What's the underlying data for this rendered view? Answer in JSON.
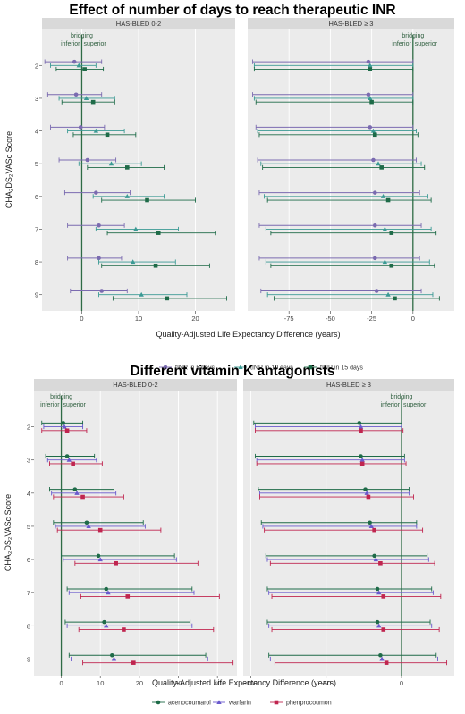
{
  "chart_data": [
    {
      "type": "forest",
      "title": "Effect of number of days to reach therapeutic INR",
      "xlabel": "Quality-Adjusted Life Expectancy Difference (years)",
      "ylabel": "CHA₂DS₂VASc Score",
      "categories": [
        "2",
        "3",
        "4",
        "5",
        "6",
        "7",
        "8",
        "9"
      ],
      "reference_line": {
        "x": 0,
        "label": "bridging",
        "left": "inferior",
        "right": "superior"
      },
      "legend": {
        "position": "bottom"
      },
      "series": [
        {
          "name": "tINR in 5 days",
          "color": "#7b6bb0",
          "marker": "circle"
        },
        {
          "name": "tINR in 10 days",
          "color": "#3a9a94",
          "marker": "triangle"
        },
        {
          "name": "tINR in 15 days",
          "color": "#1e6b48",
          "marker": "square"
        }
      ],
      "panels": [
        {
          "label": "HAS-BLED 0-2",
          "xlim": [
            -7,
            27
          ],
          "xticks": [
            0,
            10,
            20
          ],
          "data": [
            [
              {
                "est": -1.3,
                "lo": -6.5,
                "hi": 3.5
              },
              {
                "est": -0.5,
                "lo": -5.5,
                "hi": 2.5
              },
              {
                "est": 0.5,
                "lo": -4.5,
                "hi": 3.8
              }
            ],
            [
              {
                "est": -1.0,
                "lo": -6.0,
                "hi": 3.5
              },
              {
                "est": 0.8,
                "lo": -4.0,
                "hi": 5.8
              },
              {
                "est": 2.0,
                "lo": -3.5,
                "hi": 5.8
              }
            ],
            [
              {
                "est": -0.2,
                "lo": -5.5,
                "hi": 4.0
              },
              {
                "est": 2.5,
                "lo": -2.5,
                "hi": 7.5
              },
              {
                "est": 4.5,
                "lo": -1.5,
                "hi": 9.5
              }
            ],
            [
              {
                "est": 1.0,
                "lo": -4.0,
                "hi": 6.0
              },
              {
                "est": 5.2,
                "lo": -0.5,
                "hi": 10.5
              },
              {
                "est": 8.0,
                "lo": 1.0,
                "hi": 14.5
              }
            ],
            [
              {
                "est": 2.5,
                "lo": -3.0,
                "hi": 8.5
              },
              {
                "est": 8.0,
                "lo": 2.0,
                "hi": 14.5
              },
              {
                "est": 11.5,
                "lo": 3.5,
                "hi": 20.0
              }
            ],
            [
              {
                "est": 3.0,
                "lo": -2.5,
                "hi": 7.5
              },
              {
                "est": 9.5,
                "lo": 2.5,
                "hi": 17.0
              },
              {
                "est": 13.5,
                "lo": 4.5,
                "hi": 23.5
              }
            ],
            [
              {
                "est": 3.0,
                "lo": -2.5,
                "hi": 7.0
              },
              {
                "est": 9.0,
                "lo": 3.0,
                "hi": 16.5
              },
              {
                "est": 13.0,
                "lo": 3.5,
                "hi": 22.5
              }
            ],
            [
              {
                "est": 3.5,
                "lo": -2.0,
                "hi": 8.0
              },
              {
                "est": 10.5,
                "lo": 3.0,
                "hi": 18.5
              },
              {
                "est": 15.0,
                "lo": 5.5,
                "hi": 25.5
              }
            ]
          ]
        },
        {
          "label": "HAS-BLED ≥ 3",
          "xlim": [
            -100,
            25
          ],
          "xticks": [
            -75,
            -50,
            -25,
            0
          ],
          "data": [
            [
              {
                "est": -27,
                "lo": -97,
                "hi": 0
              },
              {
                "est": -26,
                "lo": -96,
                "hi": 0
              },
              {
                "est": -26,
                "lo": -96,
                "hi": 0
              }
            ],
            [
              {
                "est": -27,
                "lo": -97,
                "hi": 0
              },
              {
                "est": -26,
                "lo": -96,
                "hi": 0
              },
              {
                "est": -25,
                "lo": -95,
                "hi": 0
              }
            ],
            [
              {
                "est": -26,
                "lo": -95,
                "hi": 0
              },
              {
                "est": -24,
                "lo": -94,
                "hi": 2
              },
              {
                "est": -23,
                "lo": -93,
                "hi": 3
              }
            ],
            [
              {
                "est": -24,
                "lo": -94,
                "hi": 2
              },
              {
                "est": -21,
                "lo": -92,
                "hi": 5
              },
              {
                "est": -19,
                "lo": -91,
                "hi": 7
              }
            ],
            [
              {
                "est": -23,
                "lo": -93,
                "hi": 4
              },
              {
                "est": -18,
                "lo": -90,
                "hi": 9
              },
              {
                "est": -15,
                "lo": -88,
                "hi": 11
              }
            ],
            [
              {
                "est": -23,
                "lo": -93,
                "hi": 5
              },
              {
                "est": -17,
                "lo": -89,
                "hi": 11
              },
              {
                "est": -13,
                "lo": -86,
                "hi": 14
              }
            ],
            [
              {
                "est": -23,
                "lo": -93,
                "hi": 4
              },
              {
                "est": -17,
                "lo": -89,
                "hi": 10
              },
              {
                "est": -13,
                "lo": -86,
                "hi": 13
              }
            ],
            [
              {
                "est": -22,
                "lo": -92,
                "hi": 5
              },
              {
                "est": -15,
                "lo": -88,
                "hi": 12
              },
              {
                "est": -11,
                "lo": -84,
                "hi": 16
              }
            ]
          ]
        }
      ]
    },
    {
      "type": "forest",
      "title": "Different vitamin K antagonists",
      "xlabel": "Quality-Adjusted Life Expectancy Difference (years)",
      "ylabel": "CHA₂DS₂VASc Score",
      "categories": [
        "2",
        "3",
        "4",
        "5",
        "6",
        "7",
        "8",
        "9"
      ],
      "reference_line": {
        "x": 0,
        "label": "bridging",
        "left": "inferior",
        "right": "superior"
      },
      "legend": {
        "position": "bottom"
      },
      "series": [
        {
          "name": "acenocoumarol",
          "color": "#1e6b48",
          "marker": "circle"
        },
        {
          "name": "warfarin",
          "color": "#6a5acd",
          "marker": "triangle"
        },
        {
          "name": "phenprocoumon",
          "color": "#c0254f",
          "marker": "square"
        }
      ],
      "panels": [
        {
          "label": "HAS-BLED 0-2",
          "xlim": [
            -7,
            45
          ],
          "xticks": [
            0,
            10,
            20,
            30,
            40
          ],
          "data": [
            [
              {
                "est": 0.5,
                "lo": -5.0,
                "hi": 5.5
              },
              {
                "est": 0.8,
                "lo": -4.5,
                "hi": 5.5
              },
              {
                "est": 1.5,
                "lo": -5.0,
                "hi": 6.5
              }
            ],
            [
              {
                "est": 1.5,
                "lo": -4.0,
                "hi": 8.5
              },
              {
                "est": 2.0,
                "lo": -3.5,
                "hi": 9.0
              },
              {
                "est": 3.0,
                "lo": -3.0,
                "hi": 10.5
              }
            ],
            [
              {
                "est": 3.5,
                "lo": -3.0,
                "hi": 13.5
              },
              {
                "est": 4.0,
                "lo": -2.5,
                "hi": 14.0
              },
              {
                "est": 5.5,
                "lo": -2.0,
                "hi": 16.0
              }
            ],
            [
              {
                "est": 6.5,
                "lo": -2.0,
                "hi": 21.0
              },
              {
                "est": 7.0,
                "lo": -1.5,
                "hi": 21.5
              },
              {
                "est": 10.0,
                "lo": -1.0,
                "hi": 25.5
              }
            ],
            [
              {
                "est": 9.5,
                "lo": 0.0,
                "hi": 29.0
              },
              {
                "est": 10.0,
                "lo": 0.5,
                "hi": 29.5
              },
              {
                "est": 14.0,
                "lo": 3.5,
                "hi": 35.0
              }
            ],
            [
              {
                "est": 11.5,
                "lo": 1.5,
                "hi": 33.5
              },
              {
                "est": 12.0,
                "lo": 2.0,
                "hi": 34.0
              },
              {
                "est": 17.0,
                "lo": 5.0,
                "hi": 40.5
              }
            ],
            [
              {
                "est": 11.0,
                "lo": 1.0,
                "hi": 33.0
              },
              {
                "est": 11.5,
                "lo": 1.5,
                "hi": 33.5
              },
              {
                "est": 16.0,
                "lo": 4.5,
                "hi": 39.0
              }
            ],
            [
              {
                "est": 13.0,
                "lo": 2.0,
                "hi": 37.0
              },
              {
                "est": 13.5,
                "lo": 2.5,
                "hi": 37.5
              },
              {
                "est": 18.5,
                "lo": 5.5,
                "hi": 44.0
              }
            ]
          ]
        },
        {
          "label": "HAS-BLED ≥ 3",
          "xlim": [
            -105,
            35
          ],
          "xticks": [
            -100,
            -50,
            0
          ],
          "data": [
            [
              {
                "est": -28,
                "lo": -98,
                "hi": 0
              },
              {
                "est": -27,
                "lo": -97,
                "hi": 0
              },
              {
                "est": -27,
                "lo": -97,
                "hi": 1
              }
            ],
            [
              {
                "est": -27,
                "lo": -97,
                "hi": 2
              },
              {
                "est": -26,
                "lo": -96,
                "hi": 2
              },
              {
                "est": -26,
                "lo": -96,
                "hi": 3
              }
            ],
            [
              {
                "est": -24,
                "lo": -95,
                "hi": 5
              },
              {
                "est": -23,
                "lo": -94,
                "hi": 5
              },
              {
                "est": -22,
                "lo": -94,
                "hi": 8
              }
            ],
            [
              {
                "est": -21,
                "lo": -93,
                "hi": 10
              },
              {
                "est": -20,
                "lo": -92,
                "hi": 10
              },
              {
                "est": -18,
                "lo": -91,
                "hi": 14
              }
            ],
            [
              {
                "est": -18,
                "lo": -90,
                "hi": 17
              },
              {
                "est": -17,
                "lo": -89,
                "hi": 18
              },
              {
                "est": -14,
                "lo": -87,
                "hi": 22
              }
            ],
            [
              {
                "est": -16,
                "lo": -89,
                "hi": 20
              },
              {
                "est": -15,
                "lo": -88,
                "hi": 21
              },
              {
                "est": -12,
                "lo": -86,
                "hi": 26
              }
            ],
            [
              {
                "est": -16,
                "lo": -89,
                "hi": 19
              },
              {
                "est": -15,
                "lo": -88,
                "hi": 20
              },
              {
                "est": -12,
                "lo": -86,
                "hi": 25
              }
            ],
            [
              {
                "est": -14,
                "lo": -88,
                "hi": 23
              },
              {
                "est": -13,
                "lo": -87,
                "hi": 24
              },
              {
                "est": -10,
                "lo": -84,
                "hi": 30
              }
            ]
          ]
        }
      ]
    }
  ]
}
